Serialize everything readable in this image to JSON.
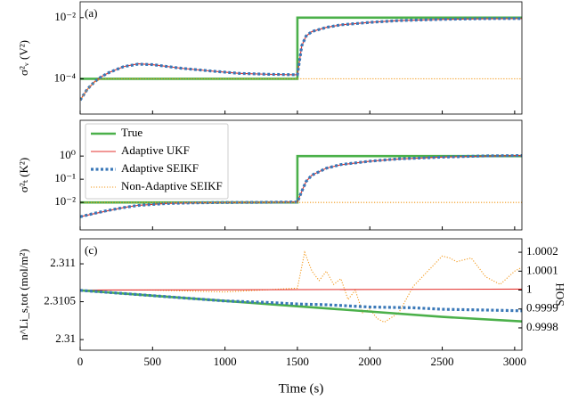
{
  "chart_data": [
    {
      "type": "line",
      "panel_label": "(a)",
      "ylabel": "σ²ᵥ (V²)",
      "log_y": true,
      "xlim": [
        0,
        3050
      ],
      "ylim": [
        7e-06,
        0.033
      ],
      "yticks": [
        {
          "value": 0.0001,
          "label": "10⁻⁴"
        },
        {
          "value": 0.01,
          "label": "10⁻²"
        }
      ],
      "series": [
        {
          "color": "#4bb04a",
          "linestyle": "solid",
          "x": [
            0,
            1500,
            1500,
            3050
          ],
          "values": [
            0.0001,
            0.0001,
            0.01,
            0.01
          ]
        },
        {
          "color": "#e3312d",
          "linestyle": "thin",
          "x": [
            0,
            50,
            100,
            150,
            200,
            300,
            400,
            500,
            700,
            900,
            1100,
            1300,
            1500,
            1530,
            1560,
            1600,
            1700,
            1800,
            2000,
            2200,
            2500,
            2800,
            3050
          ],
          "values": [
            2e-05,
            4.5e-05,
            8e-05,
            0.00012,
            0.00016,
            0.00025,
            0.00031,
            0.00029,
            0.00022,
            0.00018,
            0.00015,
            0.00014,
            0.000135,
            0.0012,
            0.0025,
            0.0035,
            0.0048,
            0.0058,
            0.007,
            0.008,
            0.0088,
            0.0092,
            0.0093
          ]
        },
        {
          "color": "#3a78b8",
          "linestyle": "thick-dotted",
          "x": [
            0,
            50,
            100,
            150,
            200,
            300,
            400,
            500,
            700,
            900,
            1100,
            1300,
            1500,
            1530,
            1560,
            1600,
            1700,
            1800,
            2000,
            2200,
            2500,
            2800,
            3050
          ],
          "values": [
            2e-05,
            4.6e-05,
            8e-05,
            0.00012,
            0.00016,
            0.00025,
            0.0003,
            0.00029,
            0.00022,
            0.00018,
            0.00015,
            0.00014,
            0.000135,
            0.0012,
            0.0025,
            0.0035,
            0.0048,
            0.0058,
            0.007,
            0.008,
            0.0088,
            0.0093,
            0.0094
          ]
        },
        {
          "color": "#f39a1e",
          "linestyle": "dotted",
          "x": [
            0,
            50,
            100,
            150,
            3050
          ],
          "values": [
            2e-05,
            4.5e-05,
            8e-05,
            0.0001,
            0.0001
          ]
        }
      ]
    },
    {
      "type": "line",
      "panel_label": "(b)",
      "ylabel": "σ²ₜ (K²)",
      "log_y": true,
      "legend": "upper left",
      "xlim": [
        0,
        3050
      ],
      "ylim": [
        0.00065,
        35
      ],
      "yticks": [
        {
          "value": 0.01,
          "label": "10⁻²"
        },
        {
          "value": 0.1,
          "label": "10⁻¹"
        },
        {
          "value": 1,
          "label": "10⁰"
        }
      ],
      "series": [
        {
          "name": "True",
          "color": "#4bb04a",
          "linestyle": "solid",
          "x": [
            0,
            1500,
            1500,
            3050
          ],
          "values": [
            0.01,
            0.01,
            1,
            1
          ]
        },
        {
          "name": "Adaptive UKF",
          "color": "#e3312d",
          "linestyle": "thin",
          "x": [
            0,
            100,
            200,
            300,
            400,
            600,
            800,
            1000,
            1200,
            1500,
            1530,
            1560,
            1600,
            1700,
            1800,
            2000,
            2200,
            2500,
            2800,
            3050
          ],
          "values": [
            0.0024,
            0.0033,
            0.0045,
            0.006,
            0.0075,
            0.009,
            0.0095,
            0.0098,
            0.01,
            0.0105,
            0.03,
            0.08,
            0.15,
            0.3,
            0.42,
            0.6,
            0.75,
            0.9,
            1,
            1.05
          ]
        },
        {
          "name": "Adaptive SEIKF",
          "color": "#3a78b8",
          "linestyle": "thick-dotted",
          "x": [
            0,
            100,
            200,
            300,
            400,
            600,
            800,
            1000,
            1200,
            1500,
            1530,
            1560,
            1600,
            1700,
            1800,
            2000,
            2200,
            2500,
            2800,
            3050
          ],
          "values": [
            0.0024,
            0.0034,
            0.0046,
            0.006,
            0.0074,
            0.009,
            0.0096,
            0.0099,
            0.01,
            0.0104,
            0.03,
            0.08,
            0.15,
            0.3,
            0.43,
            0.6,
            0.76,
            0.9,
            1.02,
            1.05
          ]
        },
        {
          "name": "Non-Adaptive SEIKF",
          "color": "#f39a1e",
          "linestyle": "dotted",
          "x": [
            0,
            3050
          ],
          "values": [
            0.01,
            0.01
          ]
        }
      ]
    },
    {
      "type": "line",
      "panel_label": "(c)",
      "ylabel": "n^Li_s,tot (mol/m²)",
      "xlabel": "Time (s)",
      "y2label": "SOH",
      "log_y": false,
      "xlim": [
        0,
        3050
      ],
      "xticks": [
        0,
        500,
        1000,
        1500,
        2000,
        2500,
        3000
      ],
      "ylim": [
        2.30986,
        2.31133
      ],
      "yticks": [
        2.31,
        2.3105,
        2.311
      ],
      "y2lim": [
        0.999682,
        1.000271
      ],
      "y2ticks": [
        0.9998,
        0.9999,
        1,
        1.0001,
        1.0002
      ],
      "series": [
        {
          "color": "#f39a1e",
          "linestyle": "dotted",
          "axis": "y2",
          "x": [
            0,
            500,
            1000,
            1500,
            1550,
            1600,
            1650,
            1700,
            1750,
            1800,
            1850,
            1900,
            1950,
            2000,
            2050,
            2100,
            2200,
            2300,
            2400,
            2500,
            2550,
            2600,
            2700,
            2800,
            2900,
            3000,
            3050
          ],
          "values": [
            1,
            1,
            0.99999,
            1.00001,
            1.0002,
            1.0001,
            1.00005,
            1.0001,
            1.00003,
            1.00006,
            0.99995,
            1,
            0.99988,
            0.9999,
            0.99985,
            0.99983,
            0.99988,
            1.00002,
            1.0001,
            1.00018,
            1.00017,
            1.00015,
            1.00017,
            1.00007,
            1.00003,
            1.0001,
            1.00012
          ]
        },
        {
          "color": "#e3312d",
          "linestyle": "thin",
          "axis": "y2",
          "x": [
            0,
            3050
          ],
          "values": [
            1,
            1.000005
          ]
        },
        {
          "color": "#4bb04a",
          "linestyle": "solid",
          "x": [
            0,
            500,
            1000,
            1500,
            2000,
            2500,
            3050
          ],
          "values": [
            2.31065,
            2.31058,
            2.31051,
            2.31044,
            2.31037,
            2.3103,
            2.31024
          ]
        },
        {
          "color": "#3a78b8",
          "linestyle": "thick-dotted",
          "x": [
            0,
            500,
            1000,
            1300,
            1500,
            1700,
            2000,
            2300,
            2500,
            2800,
            3050
          ],
          "values": [
            2.31065,
            2.31058,
            2.31051,
            2.31049,
            2.31047,
            2.31046,
            2.31043,
            2.31042,
            2.3104,
            2.31039,
            2.31038
          ]
        }
      ]
    }
  ]
}
